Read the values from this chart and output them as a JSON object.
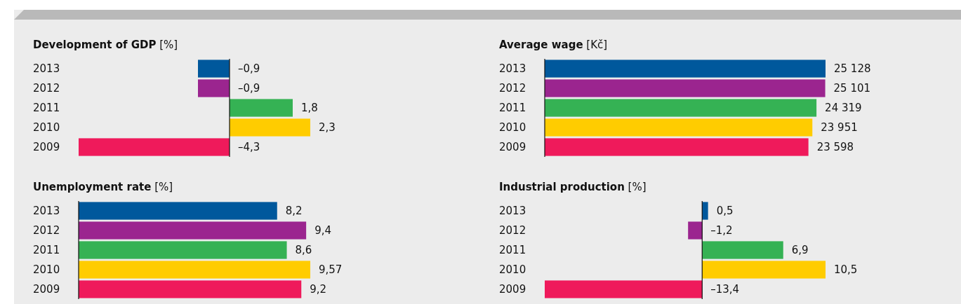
{
  "chart_data": [
    {
      "type": "bar",
      "orientation": "horizontal",
      "title": "Development of GDP [%]",
      "categories": [
        "2013",
        "2012",
        "2011",
        "2010",
        "2009"
      ],
      "values": [
        -0.9,
        -0.9,
        1.8,
        2.3,
        -4.3
      ],
      "colors": [
        "#00589c",
        "#9b258f",
        "#35b254",
        "#ffcc00",
        "#ef1a5b"
      ],
      "value_labels": [
        "–0,9",
        "–0,9",
        "1,8",
        "2,3",
        "–4,3"
      ]
    },
    {
      "type": "bar",
      "orientation": "horizontal",
      "title": "Average wage [Kč]",
      "categories": [
        "2013",
        "2012",
        "2011",
        "2010",
        "2009"
      ],
      "values": [
        25128,
        25101,
        24319,
        23951,
        23598
      ],
      "colors": [
        "#00589c",
        "#9b258f",
        "#35b254",
        "#ffcc00",
        "#ef1a5b"
      ],
      "value_labels": [
        "25 128",
        "25 101",
        "24 319",
        "23 951",
        "23 598"
      ]
    },
    {
      "type": "bar",
      "orientation": "horizontal",
      "title": "Unemployment rate [%]",
      "categories": [
        "2013",
        "2012",
        "2011",
        "2010",
        "2009"
      ],
      "values": [
        8.2,
        9.4,
        8.6,
        9.57,
        9.2
      ],
      "colors": [
        "#00589c",
        "#9b258f",
        "#35b254",
        "#ffcc00",
        "#ef1a5b"
      ],
      "value_labels": [
        "8,2",
        "9,4",
        "8,6",
        "9,57",
        "9,2"
      ]
    },
    {
      "type": "bar",
      "orientation": "horizontal",
      "title": "Industrial production [%]",
      "categories": [
        "2013",
        "2012",
        "2011",
        "2010",
        "2009"
      ],
      "values": [
        0.5,
        -1.2,
        6.9,
        10.5,
        -13.4
      ],
      "colors": [
        "#00589c",
        "#9b258f",
        "#35b254",
        "#ffcc00",
        "#ef1a5b"
      ],
      "value_labels": [
        "0,5",
        "–1,2",
        "6,9",
        "10,5",
        "–13,4"
      ]
    }
  ]
}
